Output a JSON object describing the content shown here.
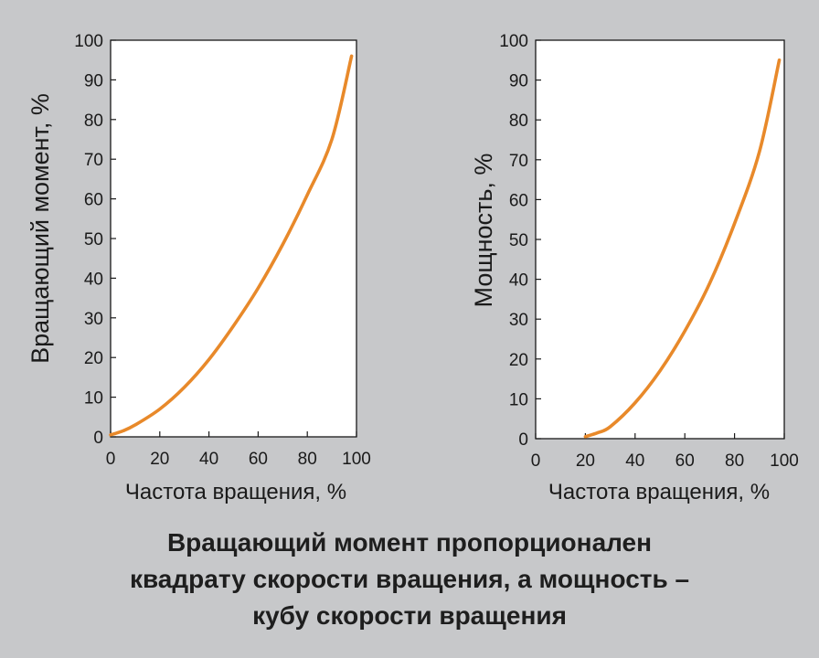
{
  "colors": {
    "background": "#c7c8ca",
    "plot_area": "#ffffff",
    "curve": "#e8892a",
    "text": "#1a1a1a"
  },
  "chart_data": [
    {
      "type": "line",
      "title": "",
      "xlabel": "Частота вращения, %",
      "ylabel": "Вращающий момент, %",
      "xlim": [
        0,
        100
      ],
      "ylim": [
        0,
        100
      ],
      "xticks": [
        "0",
        "20",
        "40",
        "60",
        "80",
        "100"
      ],
      "yticks": [
        "0",
        "10",
        "20",
        "30",
        "40",
        "50",
        "60",
        "70",
        "80",
        "90",
        "100"
      ],
      "grid": false,
      "series": [
        {
          "x": [
            0,
            5,
            10,
            20,
            30,
            40,
            50,
            60,
            70,
            80,
            90,
            98
          ],
          "y": [
            0.5,
            1.5,
            3,
            7,
            12.5,
            19.5,
            28,
            37.5,
            48.5,
            61,
            75,
            96
          ]
        }
      ]
    },
    {
      "type": "line",
      "title": "",
      "xlabel": "Частота вращения, %",
      "ylabel": "Мощность, %",
      "xlim": [
        0,
        100
      ],
      "ylim": [
        0,
        100
      ],
      "xticks": [
        "0",
        "20",
        "40",
        "60",
        "80",
        "100"
      ],
      "yticks": [
        "0",
        "10",
        "20",
        "30",
        "40",
        "50",
        "60",
        "70",
        "80",
        "90",
        "100"
      ],
      "grid": false,
      "series": [
        {
          "x": [
            20,
            25,
            30,
            40,
            50,
            60,
            70,
            80,
            90,
            98
          ],
          "y": [
            0.5,
            1.5,
            3,
            9,
            17,
            27,
            39,
            54,
            72,
            95
          ]
        }
      ]
    }
  ],
  "caption": {
    "line1": "Вращающий момент пропорционален",
    "line2": "квадрату скорости вращения, а мощность –",
    "line3": "кубу скорости вращения"
  }
}
